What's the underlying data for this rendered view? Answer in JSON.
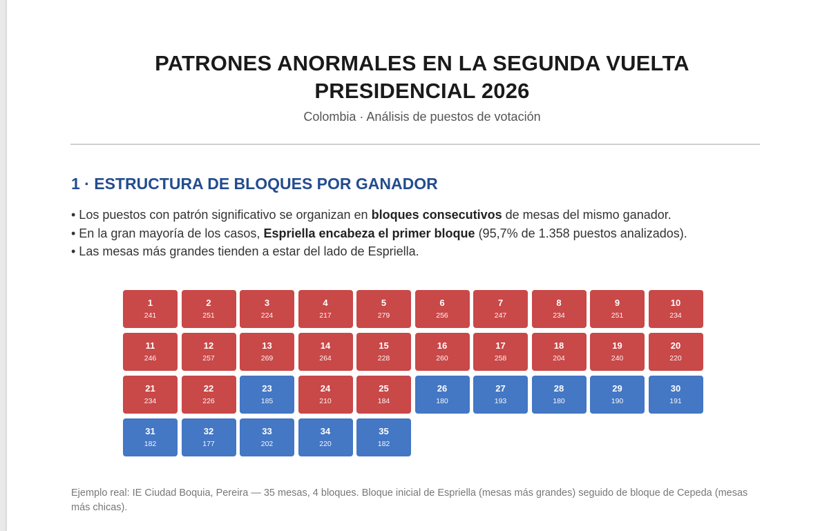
{
  "header": {
    "title_line1": "PATRONES ANORMALES EN LA SEGUNDA VUELTA",
    "title_line2": "PRESIDENCIAL 2026",
    "subtitle": "Colombia · Análisis de puestos de votación"
  },
  "section": {
    "title": "1 · ESTRUCTURA DE BLOQUES POR GANADOR",
    "bullets": [
      {
        "pre": "• Los puestos con patrón significativo se organizan en ",
        "bold": "bloques consecutivos",
        "post": " de mesas del mismo ganador."
      },
      {
        "pre": "• En la gran mayoría de los casos, ",
        "bold": "Espriella encabeza el primer bloque",
        "post": " (95,7% de 1.358 puestos analizados)."
      },
      {
        "pre": "• Las mesas más grandes tienden a estar del lado de Espriella.",
        "bold": "",
        "post": ""
      }
    ]
  },
  "colors": {
    "espriella": "#c94848",
    "cepeda": "#4477c4"
  },
  "mesas": [
    {
      "n": "1",
      "v": "241",
      "w": "espriella"
    },
    {
      "n": "2",
      "v": "251",
      "w": "espriella"
    },
    {
      "n": "3",
      "v": "224",
      "w": "espriella"
    },
    {
      "n": "4",
      "v": "217",
      "w": "espriella"
    },
    {
      "n": "5",
      "v": "279",
      "w": "espriella"
    },
    {
      "n": "6",
      "v": "256",
      "w": "espriella"
    },
    {
      "n": "7",
      "v": "247",
      "w": "espriella"
    },
    {
      "n": "8",
      "v": "234",
      "w": "espriella"
    },
    {
      "n": "9",
      "v": "251",
      "w": "espriella"
    },
    {
      "n": "10",
      "v": "234",
      "w": "espriella"
    },
    {
      "n": "11",
      "v": "246",
      "w": "espriella"
    },
    {
      "n": "12",
      "v": "257",
      "w": "espriella"
    },
    {
      "n": "13",
      "v": "269",
      "w": "espriella"
    },
    {
      "n": "14",
      "v": "264",
      "w": "espriella"
    },
    {
      "n": "15",
      "v": "228",
      "w": "espriella"
    },
    {
      "n": "16",
      "v": "260",
      "w": "espriella"
    },
    {
      "n": "17",
      "v": "258",
      "w": "espriella"
    },
    {
      "n": "18",
      "v": "204",
      "w": "espriella"
    },
    {
      "n": "19",
      "v": "240",
      "w": "espriella"
    },
    {
      "n": "20",
      "v": "220",
      "w": "espriella"
    },
    {
      "n": "21",
      "v": "234",
      "w": "espriella"
    },
    {
      "n": "22",
      "v": "226",
      "w": "espriella"
    },
    {
      "n": "23",
      "v": "185",
      "w": "cepeda"
    },
    {
      "n": "24",
      "v": "210",
      "w": "espriella"
    },
    {
      "n": "25",
      "v": "184",
      "w": "espriella"
    },
    {
      "n": "26",
      "v": "180",
      "w": "cepeda"
    },
    {
      "n": "27",
      "v": "193",
      "w": "cepeda"
    },
    {
      "n": "28",
      "v": "180",
      "w": "cepeda"
    },
    {
      "n": "29",
      "v": "190",
      "w": "cepeda"
    },
    {
      "n": "30",
      "v": "191",
      "w": "cepeda"
    },
    {
      "n": "31",
      "v": "182",
      "w": "cepeda"
    },
    {
      "n": "32",
      "v": "177",
      "w": "cepeda"
    },
    {
      "n": "33",
      "v": "202",
      "w": "cepeda"
    },
    {
      "n": "34",
      "v": "220",
      "w": "cepeda"
    },
    {
      "n": "35",
      "v": "182",
      "w": "cepeda"
    }
  ],
  "footnote": "Ejemplo real: IE Ciudad Boquia, Pereira — 35 mesas, 4 bloques. Bloque inicial de Espriella (mesas más grandes) seguido de bloque de Cepeda (mesas más chicas)."
}
